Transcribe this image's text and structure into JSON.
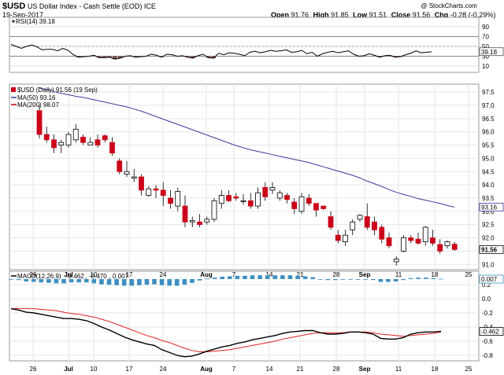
{
  "header": {
    "symbol": "$USD",
    "name": "US Dollar Index - Cash Settle (EOD) ICE",
    "date": "19-Sep-2017",
    "open_label": "Open",
    "open": "91.76",
    "high_label": "High",
    "high": "91.85",
    "low_label": "Low",
    "low": "91.51",
    "close_label": "Close",
    "close": "91.56",
    "chg_label": "Chg",
    "chg": "-0.28 (-0.29%)",
    "watermark": "@ StockCharts.com"
  },
  "colors": {
    "up": "#ffffff",
    "down": "#cc0019",
    "ma50": "#3b3b9e",
    "ma200": "#cc0019",
    "rsi_line": "#000000",
    "rsi_fill": "#7a4a4a",
    "macd_line": "#000000",
    "signal_line": "#e02020",
    "histogram": "#3d8fc4"
  },
  "rsi": {
    "legend": "RSI(14) 39.18",
    "last_value": "39.18",
    "y_ticks": [
      "90",
      "70",
      "50",
      "30",
      "10"
    ],
    "values": [
      54,
      50,
      46,
      50,
      53,
      49,
      43,
      44,
      44,
      41,
      46,
      42,
      33,
      28,
      29,
      30,
      32,
      27,
      27,
      28,
      24,
      26,
      30,
      31,
      28,
      29,
      30,
      34,
      32,
      28,
      34,
      33,
      30,
      31,
      28,
      26,
      31,
      34,
      27,
      26,
      36,
      33,
      37,
      36,
      34,
      31,
      38,
      40,
      37,
      39,
      42,
      40,
      41,
      43,
      38,
      39,
      42,
      35,
      38,
      30,
      35,
      38,
      40,
      37,
      39,
      41,
      34,
      30,
      31,
      35,
      32,
      28,
      31,
      32,
      28,
      29,
      33,
      36,
      41,
      37,
      38,
      39
    ]
  },
  "chart_data": {
    "type": "candlestick",
    "title": "$USD (Daily) 91.56 (19 Sep)",
    "legend": [
      {
        "name": "MA(50) 93.16",
        "color": "#3b3b9e"
      },
      {
        "name": "MA(200) 98.07",
        "color": "#cc0019"
      }
    ],
    "x_labels": [
      "26",
      "Jul",
      "10",
      "17",
      "24",
      "Aug",
      "7",
      "14",
      "21",
      "28",
      "Sep",
      "11",
      "18",
      "25"
    ],
    "ylim": [
      90.8,
      97.8
    ],
    "y_ticks": [
      "97.5",
      "97.0",
      "96.5",
      "96.0",
      "95.5",
      "95.0",
      "94.5",
      "94.0",
      "93.5",
      "93.0",
      "92.5",
      "92.0",
      "91.5",
      "91.0"
    ],
    "price_labels": {
      "ma50": "93.16",
      "close": "91.56"
    },
    "ohlc": [
      [
        96.8,
        97.0,
        95.75,
        95.9
      ],
      [
        95.9,
        96.2,
        95.6,
        95.7
      ],
      [
        95.7,
        95.9,
        95.2,
        95.4
      ],
      [
        95.5,
        95.7,
        95.2,
        95.6
      ],
      [
        95.5,
        96.0,
        95.4,
        95.9
      ],
      [
        95.7,
        96.3,
        95.6,
        96.1
      ],
      [
        95.8,
        95.9,
        95.5,
        95.6
      ],
      [
        95.5,
        95.8,
        95.5,
        95.6
      ],
      [
        95.7,
        95.9,
        95.4,
        95.5
      ],
      [
        95.85,
        95.9,
        95.6,
        95.7
      ],
      [
        95.6,
        95.8,
        95.1,
        95.2
      ],
      [
        94.9,
        95.0,
        94.4,
        94.5
      ],
      [
        94.4,
        94.9,
        94.3,
        94.5
      ],
      [
        94.25,
        94.6,
        94.1,
        94.3
      ],
      [
        94.3,
        94.4,
        93.6,
        93.8
      ],
      [
        93.6,
        93.95,
        93.55,
        93.85
      ],
      [
        93.85,
        94.0,
        93.5,
        93.8
      ],
      [
        93.8,
        94.1,
        93.2,
        93.6
      ],
      [
        93.5,
        93.8,
        93.1,
        93.3
      ],
      [
        93.2,
        93.9,
        93.0,
        93.75
      ],
      [
        93.2,
        93.6,
        92.4,
        92.6
      ],
      [
        92.6,
        92.8,
        92.4,
        92.65
      ],
      [
        92.6,
        92.9,
        92.4,
        92.5
      ],
      [
        92.6,
        92.8,
        92.5,
        92.7
      ],
      [
        92.7,
        93.5,
        92.6,
        93.4
      ],
      [
        93.3,
        93.8,
        93.1,
        93.6
      ],
      [
        93.6,
        93.8,
        93.35,
        93.4
      ],
      [
        93.55,
        93.7,
        93.4,
        93.5
      ],
      [
        93.4,
        93.65,
        93.25,
        93.4
      ],
      [
        93.4,
        93.7,
        93.1,
        93.2
      ],
      [
        93.2,
        93.9,
        93.1,
        93.7
      ],
      [
        93.9,
        94.1,
        93.4,
        93.55
      ],
      [
        93.8,
        94.1,
        93.65,
        93.9
      ],
      [
        93.5,
        93.8,
        93.4,
        93.7
      ],
      [
        93.6,
        93.7,
        93.3,
        93.45
      ],
      [
        93.35,
        93.5,
        92.9,
        93.1
      ],
      [
        93.0,
        93.7,
        92.9,
        93.55
      ],
      [
        93.5,
        93.65,
        93.2,
        93.3
      ],
      [
        93.3,
        93.3,
        92.8,
        93.05
      ],
      [
        93.2,
        93.2,
        93.05,
        93.1
      ],
      [
        92.8,
        93.0,
        92.3,
        92.4
      ],
      [
        92.1,
        92.3,
        91.8,
        91.9
      ],
      [
        91.85,
        92.3,
        91.7,
        92.1
      ],
      [
        92.3,
        92.7,
        92.1,
        92.6
      ],
      [
        92.7,
        92.9,
        92.6,
        92.85
      ],
      [
        92.8,
        93.3,
        92.3,
        92.4
      ],
      [
        92.6,
        92.8,
        92.1,
        92.3
      ],
      [
        92.4,
        92.5,
        91.8,
        91.95
      ],
      [
        92.0,
        92.2,
        91.6,
        91.7
      ],
      [
        91.1,
        91.3,
        90.95,
        91.2
      ],
      [
        91.5,
        92.1,
        91.45,
        92.0
      ],
      [
        92.0,
        92.1,
        91.8,
        91.9
      ],
      [
        91.95,
        92.2,
        91.75,
        91.8
      ],
      [
        91.85,
        92.45,
        91.7,
        92.4
      ],
      [
        92.0,
        92.3,
        91.7,
        91.8
      ],
      [
        91.75,
        91.95,
        91.4,
        91.5
      ],
      [
        91.7,
        91.9,
        91.6,
        91.85
      ],
      [
        91.76,
        91.85,
        91.51,
        91.56
      ]
    ],
    "ma50": [
      97.65,
      97.6,
      97.52,
      97.45,
      97.4,
      97.34,
      97.3,
      97.24,
      97.18,
      97.12,
      97.06,
      97.0,
      96.94,
      96.86,
      96.78,
      96.68,
      96.58,
      96.48,
      96.38,
      96.28,
      96.18,
      96.08,
      95.98,
      95.88,
      95.78,
      95.68,
      95.58,
      95.48,
      95.4,
      95.32,
      95.26,
      95.2,
      95.14,
      95.08,
      95.02,
      94.96,
      94.9,
      94.84,
      94.76,
      94.68,
      94.6,
      94.52,
      94.44,
      94.36,
      94.26,
      94.14,
      94.04,
      93.94,
      93.82,
      93.72,
      93.64,
      93.56,
      93.48,
      93.42,
      93.36,
      93.3,
      93.22,
      93.16
    ]
  },
  "macd": {
    "legend_prefix": "MACD(12,26,9)",
    "legend_macd": "-0.462",
    "legend_signal": "-0.470",
    "legend_hist": "0.007",
    "y_ticks": [
      "0.2",
      "0.0",
      "-0.2",
      "-0.4",
      "-0.6",
      "-0.8"
    ],
    "labels": [
      "0.007",
      "-0.462"
    ],
    "macd": [
      -0.14,
      -0.16,
      -0.19,
      -0.2,
      -0.22,
      -0.24,
      -0.26,
      -0.28,
      -0.28,
      -0.29,
      -0.31,
      -0.35,
      -0.4,
      -0.44,
      -0.49,
      -0.54,
      -0.58,
      -0.61,
      -0.64,
      -0.66,
      -0.72,
      -0.76,
      -0.8,
      -0.82,
      -0.81,
      -0.78,
      -0.74,
      -0.71,
      -0.68,
      -0.66,
      -0.63,
      -0.61,
      -0.58,
      -0.56,
      -0.54,
      -0.52,
      -0.49,
      -0.47,
      -0.46,
      -0.45,
      -0.45,
      -0.48,
      -0.5,
      -0.5,
      -0.49,
      -0.47,
      -0.47,
      -0.48,
      -0.5,
      -0.56,
      -0.57,
      -0.57,
      -0.55,
      -0.5,
      -0.48,
      -0.47,
      -0.47,
      -0.46
    ],
    "signal": [
      -0.14,
      -0.14,
      -0.14,
      -0.14,
      -0.15,
      -0.16,
      -0.17,
      -0.19,
      -0.21,
      -0.22,
      -0.24,
      -0.26,
      -0.29,
      -0.32,
      -0.36,
      -0.4,
      -0.44,
      -0.48,
      -0.52,
      -0.55,
      -0.59,
      -0.62,
      -0.66,
      -0.7,
      -0.73,
      -0.75,
      -0.75,
      -0.74,
      -0.73,
      -0.72,
      -0.7,
      -0.68,
      -0.66,
      -0.64,
      -0.62,
      -0.6,
      -0.57,
      -0.55,
      -0.53,
      -0.51,
      -0.49,
      -0.48,
      -0.48,
      -0.48,
      -0.48,
      -0.47,
      -0.47,
      -0.47,
      -0.48,
      -0.5,
      -0.51,
      -0.52,
      -0.53,
      -0.52,
      -0.51,
      -0.5,
      -0.49,
      -0.47
    ],
    "histogram": [
      0.0,
      -0.02,
      -0.05,
      -0.06,
      -0.07,
      -0.08,
      -0.09,
      -0.09,
      -0.07,
      -0.07,
      -0.07,
      -0.09,
      -0.11,
      -0.12,
      -0.13,
      -0.14,
      -0.14,
      -0.13,
      -0.12,
      -0.11,
      -0.13,
      -0.14,
      -0.14,
      -0.12,
      -0.08,
      -0.03,
      0.01,
      0.03,
      0.05,
      0.06,
      0.07,
      0.07,
      0.08,
      0.08,
      0.08,
      0.08,
      0.08,
      0.08,
      0.07,
      0.06,
      0.04,
      0.0,
      -0.02,
      -0.02,
      -0.01,
      0.0,
      0.0,
      -0.01,
      -0.02,
      -0.06,
      -0.06,
      -0.05,
      -0.02,
      0.02,
      0.03,
      0.03,
      0.02,
      0.007
    ]
  }
}
